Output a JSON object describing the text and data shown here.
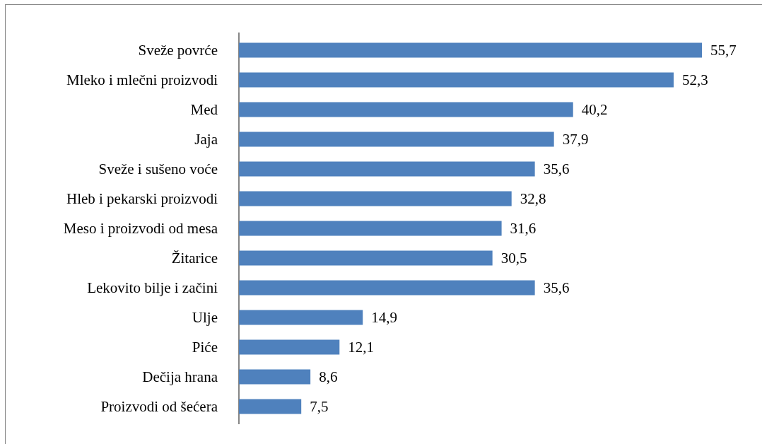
{
  "chart_data": {
    "type": "bar",
    "orientation": "horizontal",
    "categories": [
      "Sveže povrće",
      "Mleko i mlečni proizvodi",
      "Med",
      "Jaja",
      "Sveže i sušeno voće",
      "Hleb i pekarski proizvodi",
      "Meso i proizvodi od mesa",
      "Žitarice",
      "Lekovito bilje i začini",
      "Ulje",
      "Piće",
      "Dečija hrana",
      "Proizvodi od šećera"
    ],
    "values": [
      55.7,
      52.3,
      40.2,
      37.9,
      35.6,
      32.8,
      31.6,
      30.5,
      35.6,
      14.9,
      12.1,
      8.6,
      7.5
    ],
    "value_labels": [
      "55,7",
      "52,3",
      "40,2",
      "37,9",
      "35,6",
      "32,8",
      "31,6",
      "30,5",
      "35,6",
      "14,9",
      "12,1",
      "8,6",
      "7,5"
    ],
    "color": "#4f81bd",
    "tick_labels": "y"
  }
}
